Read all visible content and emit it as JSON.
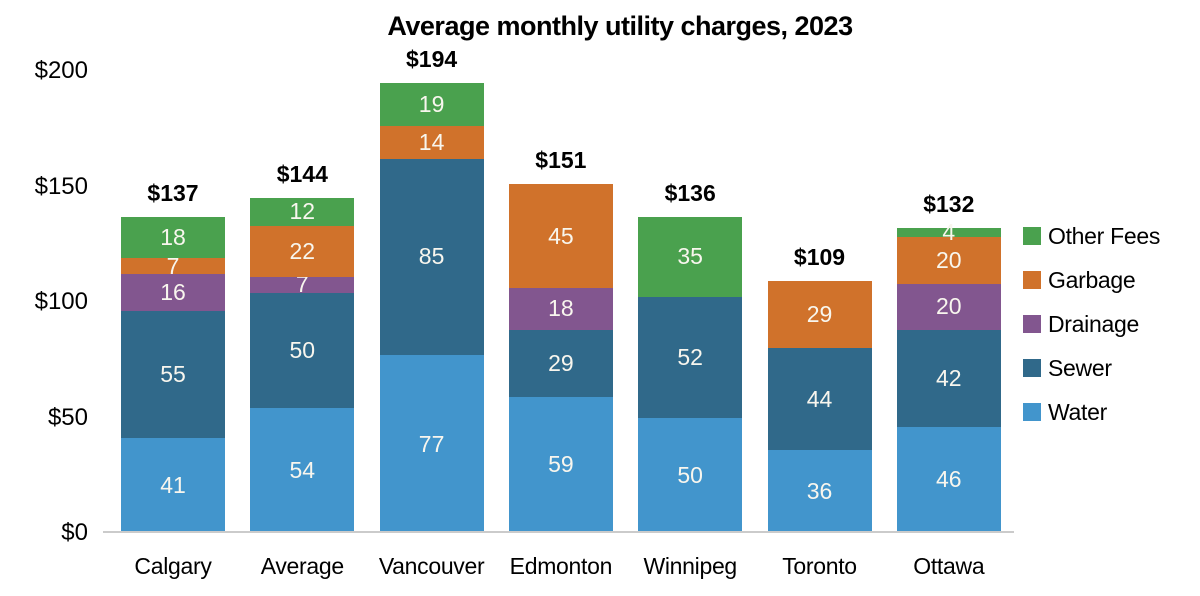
{
  "chart_data": {
    "type": "bar",
    "stacked": true,
    "title": "Average monthly utility charges, 2023",
    "categories": [
      "Calgary",
      "Average",
      "Vancouver",
      "Edmonton",
      "Winnipeg",
      "Toronto",
      "Ottawa"
    ],
    "totals": [
      "$137",
      "$144",
      "$194",
      "$151",
      "$136",
      "$109",
      "$132"
    ],
    "series": [
      {
        "name": "Water",
        "color": "#4295CC",
        "values": [
          41,
          54,
          77,
          59,
          50,
          36,
          46
        ]
      },
      {
        "name": "Sewer",
        "color": "#30698A",
        "values": [
          55,
          50,
          85,
          29,
          52,
          44,
          42
        ]
      },
      {
        "name": "Drainage",
        "color": "#82568F",
        "values": [
          16,
          7,
          0,
          18,
          0,
          0,
          20
        ]
      },
      {
        "name": "Garbage",
        "color": "#D0722B",
        "values": [
          7,
          22,
          14,
          45,
          0,
          29,
          20
        ]
      },
      {
        "name": "Other Fees",
        "color": "#4AA14E",
        "values": [
          18,
          12,
          19,
          0,
          35,
          0,
          4
        ]
      }
    ],
    "y_axis": {
      "max": 200,
      "ticks": [
        {
          "label": "$0",
          "value": 0
        },
        {
          "label": "$50",
          "value": 50
        },
        {
          "label": "$100",
          "value": 100
        },
        {
          "label": "$150",
          "value": 150
        },
        {
          "label": "$200",
          "value": 200
        }
      ]
    },
    "legend": {
      "position": "right",
      "items": [
        "Other Fees",
        "Garbage",
        "Drainage",
        "Sewer",
        "Water"
      ]
    },
    "grid": false
  }
}
